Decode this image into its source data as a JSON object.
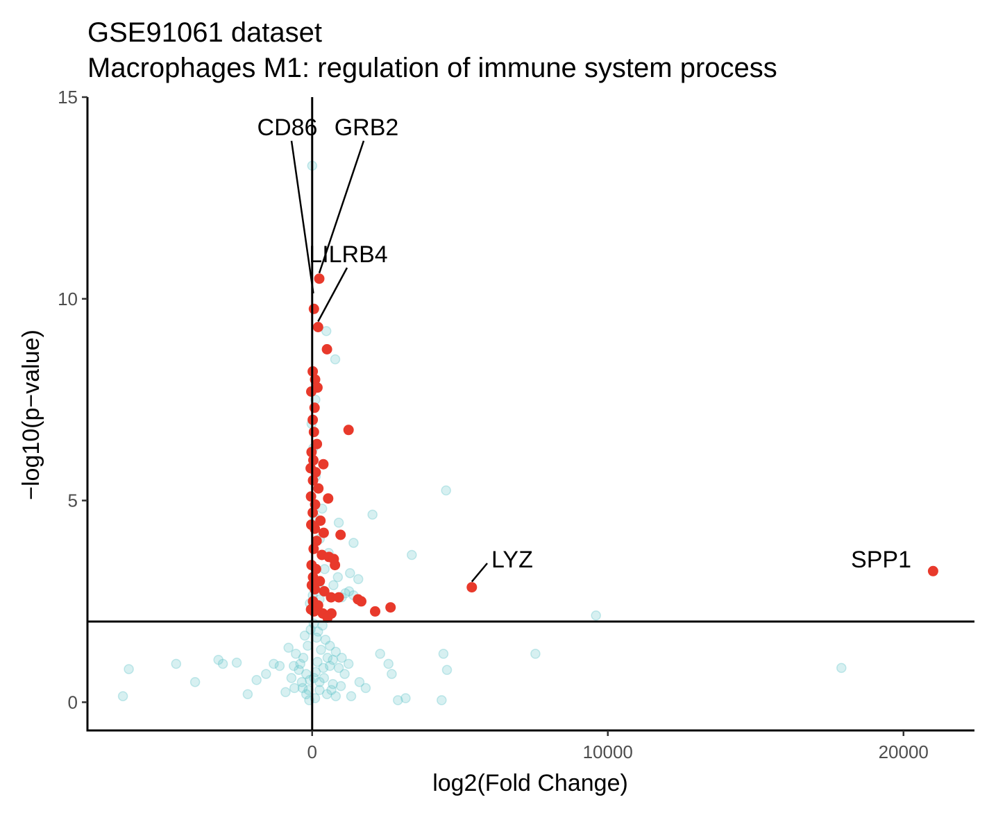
{
  "chart_data": {
    "type": "scatter",
    "title": "GSE91061 dataset",
    "subtitle": "Macrophages M1: regulation of immune system process",
    "xlabel": "log2(Fold Change)",
    "ylabel": "−log10(p−value)",
    "xlim": [
      -7600,
      22400
    ],
    "ylim": [
      -0.7,
      15
    ],
    "x_ticks": [
      0,
      10000,
      20000
    ],
    "y_ticks": [
      0,
      5,
      10,
      15
    ],
    "grid": false,
    "legend": "none",
    "reference_lines": {
      "vertical_x": 0,
      "horizontal_y": 2
    },
    "colors": {
      "significant": "#e8392b",
      "non_significant": "#5fc3c8"
    },
    "series": [
      {
        "role": "significant",
        "points": [
          [
            240,
            10.5
          ],
          [
            60,
            9.75
          ],
          [
            200,
            9.3
          ],
          [
            500,
            8.75
          ],
          [
            20,
            8.2
          ],
          [
            100,
            8.0
          ],
          [
            180,
            7.8
          ],
          [
            -30,
            7.7
          ],
          [
            80,
            7.3
          ],
          [
            20,
            7.0
          ],
          [
            60,
            6.7
          ],
          [
            1230,
            6.75
          ],
          [
            160,
            6.4
          ],
          [
            -20,
            6.2
          ],
          [
            40,
            6.0
          ],
          [
            380,
            5.9
          ],
          [
            -50,
            5.8
          ],
          [
            120,
            5.7
          ],
          [
            30,
            5.5
          ],
          [
            210,
            5.3
          ],
          [
            -40,
            5.1
          ],
          [
            540,
            5.05
          ],
          [
            100,
            4.9
          ],
          [
            20,
            4.7
          ],
          [
            280,
            4.5
          ],
          [
            -30,
            4.4
          ],
          [
            90,
            4.3
          ],
          [
            390,
            4.2
          ],
          [
            960,
            4.15
          ],
          [
            150,
            4.0
          ],
          [
            50,
            3.8
          ],
          [
            330,
            3.65
          ],
          [
            570,
            3.6
          ],
          [
            730,
            3.55
          ],
          [
            -20,
            3.4
          ],
          [
            130,
            3.3
          ],
          [
            770,
            3.4
          ],
          [
            30,
            3.1
          ],
          [
            260,
            3.0
          ],
          [
            -10,
            2.9
          ],
          [
            90,
            2.8
          ],
          [
            410,
            2.75
          ],
          [
            640,
            2.6
          ],
          [
            900,
            2.6
          ],
          [
            1550,
            2.55
          ],
          [
            1660,
            2.5
          ],
          [
            30,
            2.5
          ],
          [
            200,
            2.4
          ],
          [
            2650,
            2.35
          ],
          [
            -40,
            2.3
          ],
          [
            60,
            2.25
          ],
          [
            360,
            2.2
          ],
          [
            2130,
            2.25
          ],
          [
            650,
            2.2
          ],
          [
            520,
            2.1
          ],
          [
            5400,
            2.85
          ],
          [
            21000,
            3.25
          ]
        ]
      },
      {
        "role": "non_significant",
        "points": [
          [
            0,
            13.3
          ],
          [
            480,
            9.2
          ],
          [
            780,
            8.5
          ],
          [
            4530,
            5.25
          ],
          [
            2040,
            4.65
          ],
          [
            900,
            4.45
          ],
          [
            1400,
            3.95
          ],
          [
            3370,
            3.65
          ],
          [
            1280,
            3.2
          ],
          [
            1560,
            3.05
          ],
          [
            9600,
            2.15
          ],
          [
            -6200,
            0.82
          ],
          [
            -4600,
            0.95
          ],
          [
            -3170,
            1.05
          ],
          [
            -2550,
            0.98
          ],
          [
            -3020,
            0.95
          ],
          [
            -1300,
            0.95
          ],
          [
            -1100,
            0.9
          ],
          [
            -800,
            1.35
          ],
          [
            -1560,
            0.7
          ],
          [
            -1880,
            0.55
          ],
          [
            -2180,
            0.2
          ],
          [
            -6400,
            0.15
          ],
          [
            -3960,
            0.5
          ],
          [
            2300,
            1.2
          ],
          [
            2690,
            0.7
          ],
          [
            4440,
            1.2
          ],
          [
            4560,
            0.8
          ],
          [
            4380,
            0.05
          ],
          [
            3160,
            0.1
          ],
          [
            2900,
            0.05
          ],
          [
            7550,
            1.2
          ],
          [
            17900,
            0.85
          ],
          [
            1810,
            0.35
          ],
          [
            2580,
            0.95
          ],
          [
            1600,
            0.5
          ],
          [
            1320,
            0.15
          ],
          [
            1100,
            0.7
          ],
          [
            1230,
            0.95
          ],
          [
            970,
            0.4
          ],
          [
            800,
            0.15
          ],
          [
            -600,
            0.35
          ],
          [
            -350,
            0.5
          ],
          [
            -200,
            0.2
          ],
          [
            -100,
            0.05
          ],
          [
            100,
            0.1
          ],
          [
            250,
            0.3
          ],
          [
            400,
            0.6
          ],
          [
            600,
            0.9
          ],
          [
            700,
            1.05
          ],
          [
            300,
            1.3
          ],
          [
            150,
            1.6
          ],
          [
            -150,
            1.4
          ],
          [
            -300,
            1.1
          ],
          [
            -450,
            0.8
          ],
          [
            -700,
            0.6
          ],
          [
            -900,
            0.25
          ],
          [
            500,
            0.2
          ],
          [
            700,
            0.45
          ],
          [
            900,
            0.85
          ],
          [
            1000,
            1.1
          ],
          [
            -50,
            1.8
          ],
          [
            50,
            1.95
          ],
          [
            200,
            1.75
          ],
          [
            350,
            1.9
          ],
          [
            -250,
            1.65
          ],
          [
            450,
            1.55
          ],
          [
            600,
            1.4
          ],
          [
            -550,
            1.2
          ],
          [
            800,
            1.25
          ],
          [
            -400,
            0.95
          ],
          [
            120,
            0.75
          ],
          [
            -80,
            0.55
          ],
          [
            250,
            0.5
          ],
          [
            -200,
            0.7
          ],
          [
            380,
            0.85
          ],
          [
            650,
            0.3
          ],
          [
            -120,
            0.3
          ],
          [
            60,
            0.6
          ],
          [
            180,
            1.0
          ],
          [
            -320,
            0.35
          ],
          [
            520,
            1.1
          ],
          [
            -620,
            0.9
          ],
          [
            150,
            2.35
          ],
          [
            20,
            2.65
          ],
          [
            300,
            2.8
          ],
          [
            720,
            2.9
          ],
          [
            1120,
            2.7
          ],
          [
            870,
            3.1
          ],
          [
            420,
            3.3
          ],
          [
            560,
            3.7
          ],
          [
            260,
            4.05
          ],
          [
            80,
            4.6
          ],
          [
            340,
            4.8
          ],
          [
            120,
            5.6
          ],
          [
            40,
            6.3
          ],
          [
            -20,
            6.9
          ],
          [
            110,
            7.5
          ],
          [
            1000,
            2.6
          ],
          [
            1250,
            2.75
          ],
          [
            1400,
            2.65
          ],
          [
            -80,
            2.45
          ],
          [
            250,
            2.55
          ]
        ]
      }
    ],
    "labels": [
      {
        "text": "CD86",
        "x": 40,
        "y": 10.0
      },
      {
        "text": "GRB2",
        "x": 240,
        "y": 10.5
      },
      {
        "text": "LILRB4",
        "x": 200,
        "y": 9.3
      },
      {
        "text": "LYZ",
        "x": 5400,
        "y": 2.85
      },
      {
        "text": "SPP1",
        "x": 21000,
        "y": 3.25
      }
    ]
  }
}
